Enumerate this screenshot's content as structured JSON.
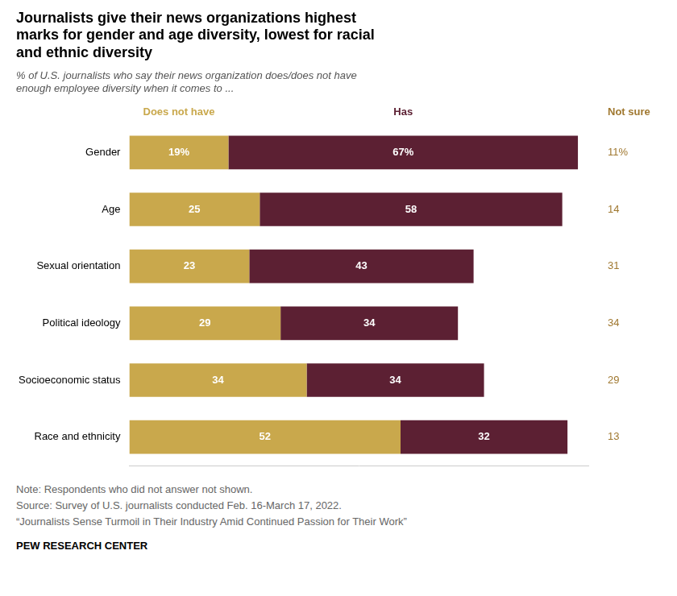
{
  "chart_data": {
    "type": "bar",
    "orientation": "horizontal",
    "stacked": true,
    "title": "Journalists give their news organizations highest\nmarks for gender and age diversity, lowest for racial\nand ethnic diversity",
    "subtitle": "% of U.S. journalists who say their news organization does/does not have\nenough employee diversity when it comes to ...",
    "categories": [
      "Gender",
      "Age",
      "Sexual orientation",
      "Political ideology",
      "Socioeconomic status",
      "Race and ethnicity"
    ],
    "series": [
      {
        "name": "Does not have",
        "color": "#C9A84C",
        "values": [
          19,
          25,
          23,
          29,
          34,
          52
        ],
        "value_labels": [
          "19%",
          "25",
          "23",
          "29",
          "34",
          "52"
        ]
      },
      {
        "name": "Has",
        "color": "#5C2033",
        "values": [
          67,
          58,
          43,
          34,
          34,
          32
        ],
        "value_labels": [
          "67%",
          "58",
          "43",
          "34",
          "34",
          "32"
        ]
      }
    ],
    "not_sure": {
      "name": "Not sure",
      "color": "#A07830",
      "values": [
        11,
        14,
        31,
        34,
        29,
        13
      ],
      "value_labels": [
        "11%",
        "14",
        "31",
        "34",
        "29",
        "13"
      ]
    },
    "xlim": [
      0,
      88
    ],
    "xticks": [],
    "tick_labels": "y",
    "grid": false,
    "data_labels": true,
    "notes": [
      "Note: Respondents who did not answer not shown.",
      "Source: Survey of U.S. journalists conducted Feb. 16-March 17, 2022.",
      "“Journalists Sense Turmoil in Their Industry Amid Continued Passion for Their Work”"
    ],
    "source": "PEW RESEARCH CENTER"
  }
}
